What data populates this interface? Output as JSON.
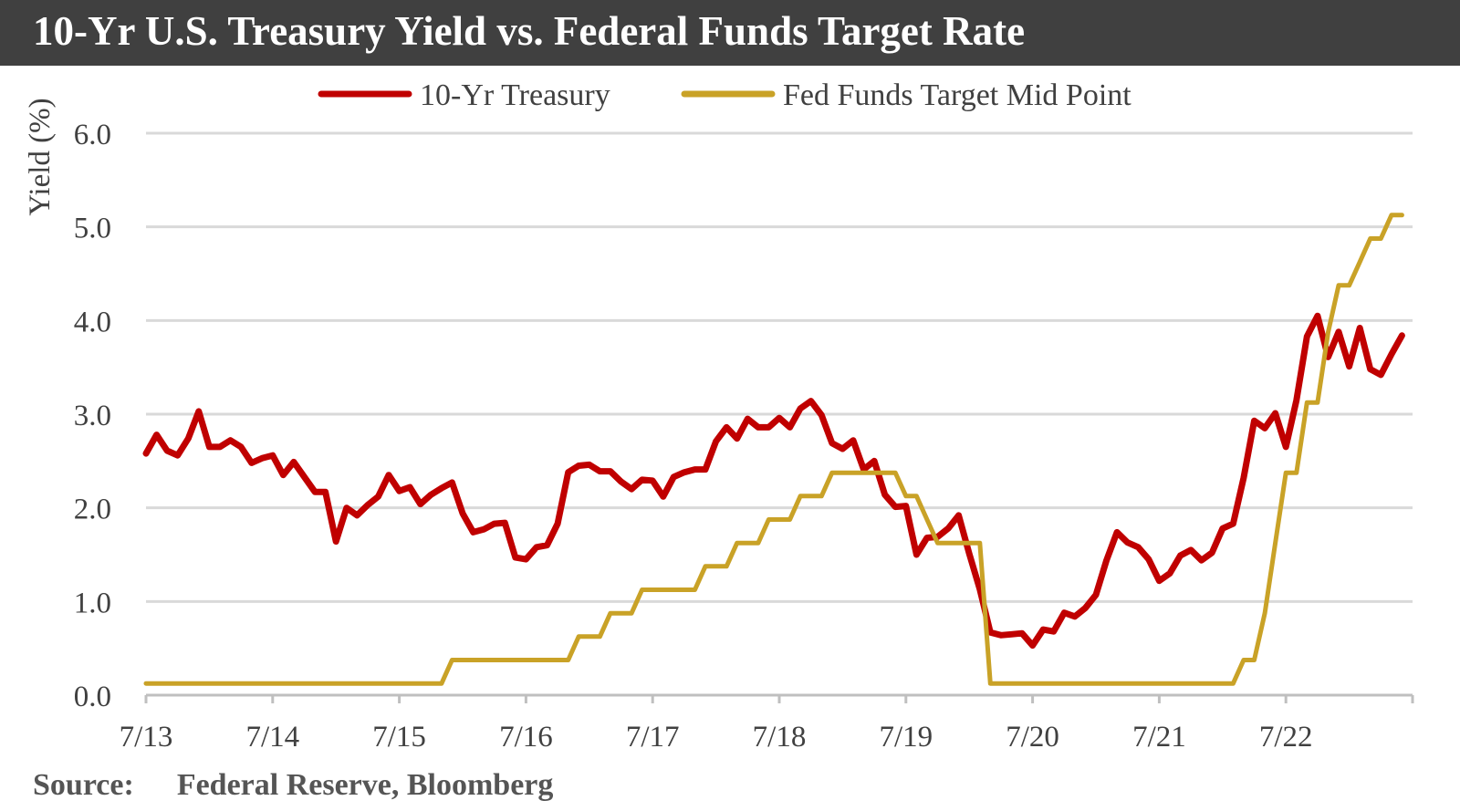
{
  "chart_data": {
    "type": "line",
    "title": "10-Yr U.S. Treasury Yield vs. Federal Funds Target Rate",
    "xlabel": "",
    "ylabel": "Yield (%)",
    "ylim": [
      0,
      6
    ],
    "yticks": [
      "0.0",
      "1.0",
      "2.0",
      "3.0",
      "4.0",
      "5.0",
      "6.0"
    ],
    "xticks": [
      "7/13",
      "7/14",
      "7/15",
      "7/16",
      "7/17",
      "7/18",
      "7/19",
      "7/20",
      "7/21",
      "7/22"
    ],
    "x_range": [
      "2013-07",
      "2023-07"
    ],
    "grid": "horizontal",
    "legend_position": "top-center",
    "series": [
      {
        "name": "10-Yr Treasury",
        "color": "#c00000",
        "points": [
          [
            "2013-07",
            2.58
          ],
          [
            "2013-08",
            2.78
          ],
          [
            "2013-09",
            2.61
          ],
          [
            "2013-10",
            2.56
          ],
          [
            "2013-11",
            2.74
          ],
          [
            "2013-12",
            3.03
          ],
          [
            "2014-01",
            2.65
          ],
          [
            "2014-02",
            2.65
          ],
          [
            "2014-03",
            2.72
          ],
          [
            "2014-04",
            2.65
          ],
          [
            "2014-05",
            2.48
          ],
          [
            "2014-06",
            2.53
          ],
          [
            "2014-07",
            2.56
          ],
          [
            "2014-08",
            2.35
          ],
          [
            "2014-09",
            2.49
          ],
          [
            "2014-10",
            2.33
          ],
          [
            "2014-11",
            2.17
          ],
          [
            "2014-12",
            2.17
          ],
          [
            "2015-01",
            1.64
          ],
          [
            "2015-02",
            2.0
          ],
          [
            "2015-03",
            1.92
          ],
          [
            "2015-04",
            2.03
          ],
          [
            "2015-05",
            2.12
          ],
          [
            "2015-06",
            2.35
          ],
          [
            "2015-07",
            2.18
          ],
          [
            "2015-08",
            2.22
          ],
          [
            "2015-09",
            2.04
          ],
          [
            "2015-10",
            2.14
          ],
          [
            "2015-11",
            2.21
          ],
          [
            "2015-12",
            2.27
          ],
          [
            "2016-01",
            1.94
          ],
          [
            "2016-02",
            1.74
          ],
          [
            "2016-03",
            1.77
          ],
          [
            "2016-04",
            1.83
          ],
          [
            "2016-05",
            1.84
          ],
          [
            "2016-06",
            1.47
          ],
          [
            "2016-07",
            1.45
          ],
          [
            "2016-08",
            1.58
          ],
          [
            "2016-09",
            1.6
          ],
          [
            "2016-10",
            1.83
          ],
          [
            "2016-11",
            2.38
          ],
          [
            "2016-12",
            2.45
          ],
          [
            "2017-01",
            2.46
          ],
          [
            "2017-02",
            2.39
          ],
          [
            "2017-03",
            2.39
          ],
          [
            "2017-04",
            2.28
          ],
          [
            "2017-05",
            2.2
          ],
          [
            "2017-06",
            2.3
          ],
          [
            "2017-07",
            2.29
          ],
          [
            "2017-08",
            2.12
          ],
          [
            "2017-09",
            2.33
          ],
          [
            "2017-10",
            2.38
          ],
          [
            "2017-11",
            2.41
          ],
          [
            "2017-12",
            2.41
          ],
          [
            "2018-01",
            2.71
          ],
          [
            "2018-02",
            2.86
          ],
          [
            "2018-03",
            2.74
          ],
          [
            "2018-04",
            2.95
          ],
          [
            "2018-05",
            2.86
          ],
          [
            "2018-06",
            2.86
          ],
          [
            "2018-07",
            2.96
          ],
          [
            "2018-08",
            2.86
          ],
          [
            "2018-09",
            3.06
          ],
          [
            "2018-10",
            3.14
          ],
          [
            "2018-11",
            2.99
          ],
          [
            "2018-12",
            2.69
          ],
          [
            "2019-01",
            2.63
          ],
          [
            "2019-02",
            2.72
          ],
          [
            "2019-03",
            2.41
          ],
          [
            "2019-04",
            2.5
          ],
          [
            "2019-05",
            2.14
          ],
          [
            "2019-06",
            2.01
          ],
          [
            "2019-07",
            2.02
          ],
          [
            "2019-08",
            1.5
          ],
          [
            "2019-09",
            1.68
          ],
          [
            "2019-10",
            1.69
          ],
          [
            "2019-11",
            1.78
          ],
          [
            "2019-12",
            1.92
          ],
          [
            "2020-01",
            1.51
          ],
          [
            "2020-02",
            1.13
          ],
          [
            "2020-03",
            0.67
          ],
          [
            "2020-04",
            0.64
          ],
          [
            "2020-05",
            0.65
          ],
          [
            "2020-06",
            0.66
          ],
          [
            "2020-07",
            0.53
          ],
          [
            "2020-08",
            0.7
          ],
          [
            "2020-09",
            0.68
          ],
          [
            "2020-10",
            0.88
          ],
          [
            "2020-11",
            0.84
          ],
          [
            "2020-12",
            0.93
          ],
          [
            "2021-01",
            1.07
          ],
          [
            "2021-02",
            1.44
          ],
          [
            "2021-03",
            1.74
          ],
          [
            "2021-04",
            1.63
          ],
          [
            "2021-05",
            1.58
          ],
          [
            "2021-06",
            1.45
          ],
          [
            "2021-07",
            1.22
          ],
          [
            "2021-08",
            1.3
          ],
          [
            "2021-09",
            1.49
          ],
          [
            "2021-10",
            1.55
          ],
          [
            "2021-11",
            1.44
          ],
          [
            "2021-12",
            1.52
          ],
          [
            "2022-01",
            1.78
          ],
          [
            "2022-02",
            1.83
          ],
          [
            "2022-03",
            2.32
          ],
          [
            "2022-04",
            2.93
          ],
          [
            "2022-05",
            2.85
          ],
          [
            "2022-06",
            3.01
          ],
          [
            "2022-07",
            2.65
          ],
          [
            "2022-08",
            3.15
          ],
          [
            "2022-09",
            3.83
          ],
          [
            "2022-10",
            4.05
          ],
          [
            "2022-11",
            3.61
          ],
          [
            "2022-12",
            3.88
          ],
          [
            "2023-01",
            3.51
          ],
          [
            "2023-02",
            3.92
          ],
          [
            "2023-03",
            3.48
          ],
          [
            "2023-04",
            3.42
          ],
          [
            "2023-05",
            3.64
          ],
          [
            "2023-06",
            3.84
          ]
        ]
      },
      {
        "name": "Fed Funds Target Mid Point",
        "color": "#c9a227",
        "points": [
          [
            "2013-07",
            0.125
          ],
          [
            "2015-11",
            0.125
          ],
          [
            "2015-12",
            0.375
          ],
          [
            "2016-11",
            0.375
          ],
          [
            "2016-12",
            0.625
          ],
          [
            "2017-02",
            0.625
          ],
          [
            "2017-03",
            0.875
          ],
          [
            "2017-05",
            0.875
          ],
          [
            "2017-06",
            1.125
          ],
          [
            "2017-11",
            1.125
          ],
          [
            "2017-12",
            1.375
          ],
          [
            "2018-02",
            1.375
          ],
          [
            "2018-03",
            1.625
          ],
          [
            "2018-05",
            1.625
          ],
          [
            "2018-06",
            1.875
          ],
          [
            "2018-08",
            1.875
          ],
          [
            "2018-09",
            2.125
          ],
          [
            "2018-11",
            2.125
          ],
          [
            "2018-12",
            2.375
          ],
          [
            "2019-06",
            2.375
          ],
          [
            "2019-07",
            2.125
          ],
          [
            "2019-08",
            2.125
          ],
          [
            "2019-09",
            1.875
          ],
          [
            "2019-10",
            1.625
          ],
          [
            "2020-02",
            1.625
          ],
          [
            "2020-03",
            0.125
          ],
          [
            "2022-02",
            0.125
          ],
          [
            "2022-03",
            0.375
          ],
          [
            "2022-04",
            0.375
          ],
          [
            "2022-05",
            0.875
          ],
          [
            "2022-06",
            1.625
          ],
          [
            "2022-07",
            2.375
          ],
          [
            "2022-08",
            2.375
          ],
          [
            "2022-09",
            3.125
          ],
          [
            "2022-10",
            3.125
          ],
          [
            "2022-11",
            3.875
          ],
          [
            "2022-12",
            4.375
          ],
          [
            "2023-01",
            4.375
          ],
          [
            "2023-02",
            4.625
          ],
          [
            "2023-03",
            4.875
          ],
          [
            "2023-04",
            4.875
          ],
          [
            "2023-05",
            5.125
          ],
          [
            "2023-06",
            5.125
          ]
        ]
      }
    ],
    "source_label": "Source:",
    "source_text": "Federal Reserve,  Bloomberg"
  }
}
